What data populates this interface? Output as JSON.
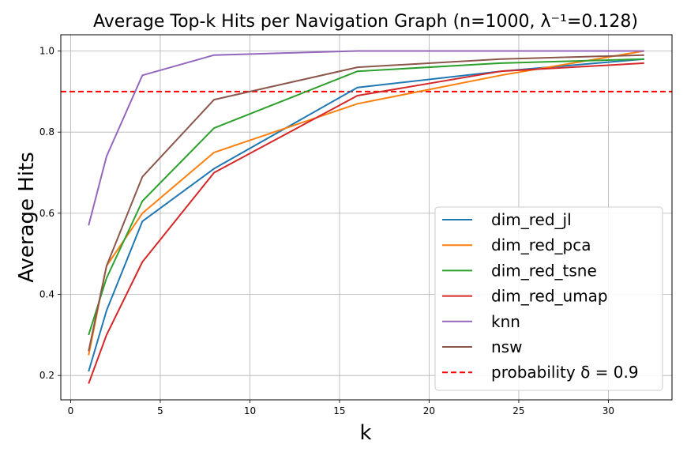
{
  "chart_data": {
    "type": "line",
    "title": "Average Top-k Hits per Navigation Graph (n=1000, λ⁻¹=0.128)",
    "xlabel": "k",
    "ylabel": "Average Hits",
    "xlim": [
      -0.55,
      33.55
    ],
    "ylim": [
      0.14,
      1.04
    ],
    "xticks": [
      0,
      5,
      10,
      15,
      20,
      25,
      30
    ],
    "xtick_labels": [
      "0",
      "5",
      "10",
      "15",
      "20",
      "25",
      "30"
    ],
    "yticks": [
      0.2,
      0.4,
      0.6,
      0.8,
      1.0
    ],
    "ytick_labels": [
      "0.2",
      "0.4",
      "0.6",
      "0.8",
      "1.0"
    ],
    "grid": true,
    "legend_position": "lower-right",
    "x": [
      1,
      2,
      4,
      8,
      16,
      24,
      32
    ],
    "series": [
      {
        "name": "dim_red_jl",
        "color": "#1f77b4",
        "values": [
          0.21,
          0.36,
          0.58,
          0.71,
          0.91,
          0.95,
          0.98
        ]
      },
      {
        "name": "dim_red_pca",
        "color": "#ff7f0e",
        "values": [
          0.25,
          0.47,
          0.6,
          0.75,
          0.87,
          0.94,
          1.0
        ]
      },
      {
        "name": "dim_red_tsne",
        "color": "#2ca02c",
        "values": [
          0.3,
          0.44,
          0.63,
          0.81,
          0.95,
          0.97,
          0.98
        ]
      },
      {
        "name": "dim_red_umap",
        "color": "#d62728",
        "values": [
          0.18,
          0.3,
          0.48,
          0.7,
          0.89,
          0.95,
          0.97
        ]
      },
      {
        "name": "knn",
        "color": "#9467bd",
        "values": [
          0.57,
          0.74,
          0.94,
          0.99,
          1.0,
          1.0,
          1.0
        ]
      },
      {
        "name": "nsw",
        "color": "#8c564b",
        "values": [
          0.26,
          0.47,
          0.69,
          0.88,
          0.96,
          0.98,
          0.99
        ]
      }
    ],
    "reference_line": {
      "name": "probability δ = 0.9",
      "y": 0.9,
      "color": "#ff0000",
      "style": "dashed"
    }
  }
}
